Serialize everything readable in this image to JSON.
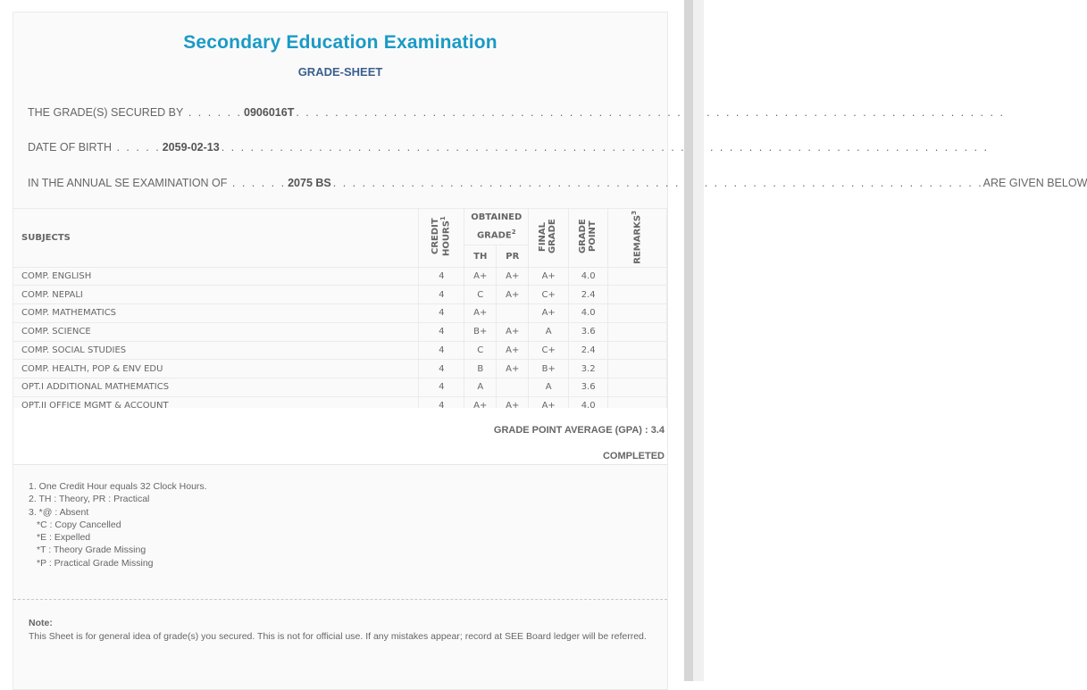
{
  "title": "Secondary Education Examination",
  "subtitle": "GRADE-SHEET",
  "info": {
    "secured_label": "THE GRADE(S) SECURED BY",
    "symbol": "0906016T",
    "dob_label": "DATE OF BIRTH",
    "dob": "2059-02-13",
    "exam_label": "IN THE ANNUAL SE EXAMINATION OF",
    "exam_year": "2075 BS",
    "exam_suffix": "ARE GIVEN BELOW"
  },
  "table": {
    "headers": {
      "subjects": "SUBJECTS",
      "credit": "CREDIT HOURS",
      "credit_sup": "1",
      "obtained": "OBTAINED GRADE",
      "obtained_sup": "2",
      "th": "TH",
      "pr": "PR",
      "final": "FINAL GRADE",
      "point": "GRADE POINT",
      "remarks": "REMARKS",
      "remarks_sup": "3"
    },
    "rows": [
      {
        "subject": "COMP. ENGLISH",
        "credit": "4",
        "th": "A+",
        "pr": "A+",
        "final": "A+",
        "point": "4.0",
        "remarks": ""
      },
      {
        "subject": "COMP. NEPALI",
        "credit": "4",
        "th": "C",
        "pr": "A+",
        "final": "C+",
        "point": "2.4",
        "remarks": ""
      },
      {
        "subject": "COMP. MATHEMATICS",
        "credit": "4",
        "th": "A+",
        "pr": "",
        "final": "A+",
        "point": "4.0",
        "remarks": ""
      },
      {
        "subject": "COMP. SCIENCE",
        "credit": "4",
        "th": "B+",
        "pr": "A+",
        "final": "A",
        "point": "3.6",
        "remarks": ""
      },
      {
        "subject": "COMP. SOCIAL STUDIES",
        "credit": "4",
        "th": "C",
        "pr": "A+",
        "final": "C+",
        "point": "2.4",
        "remarks": ""
      },
      {
        "subject": "COMP. HEALTH, POP & ENV EDU",
        "credit": "4",
        "th": "B",
        "pr": "A+",
        "final": "B+",
        "point": "3.2",
        "remarks": ""
      },
      {
        "subject": "OPT.I ADDITIONAL MATHEMATICS",
        "credit": "4",
        "th": "A",
        "pr": "",
        "final": "A",
        "point": "3.6",
        "remarks": ""
      },
      {
        "subject": "OPT.II OFFICE MGMT & ACCOUNT",
        "credit": "4",
        "th": "A+",
        "pr": "A+",
        "final": "A+",
        "point": "4.0",
        "remarks": ""
      }
    ]
  },
  "gpa": "GRADE POINT AVERAGE (GPA) : 3.4",
  "status": "COMPLETED",
  "footnotes": [
    "1. One Credit Hour equals 32 Clock Hours.",
    "2. TH : Theory, PR : Practical",
    "3. *@ : Absent",
    "*C : Copy Cancelled",
    "*E : Expelled",
    "*T : Theory Grade Missing",
    "*P : Practical Grade Missing"
  ],
  "note": {
    "label": "Note:",
    "text": "This Sheet is for general idea of grade(s) you secured. This is not for official use. If any mistakes appear; record at SEE Board ledger will be referred."
  },
  "colors": {
    "title": "#1a9ac6",
    "subtitle": "#3b5f8e"
  }
}
